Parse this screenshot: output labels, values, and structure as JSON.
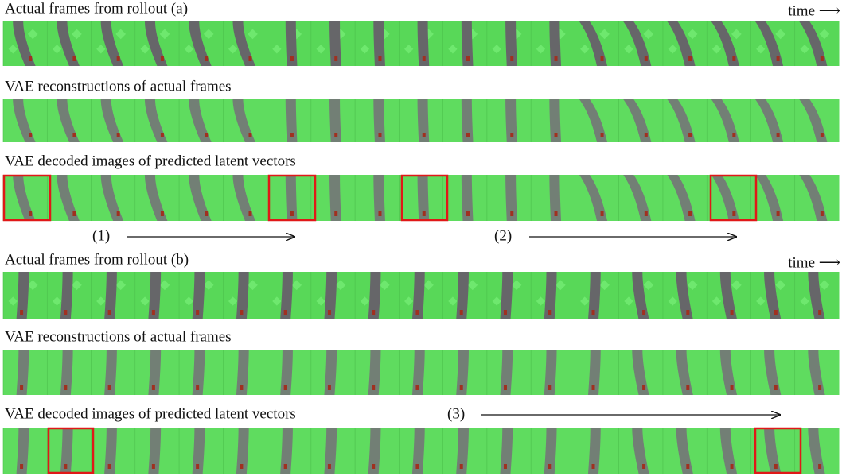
{
  "sections": [
    {
      "label": "Actual frames from rollout (a)",
      "time": "time ⟶"
    },
    {
      "label": "VAE reconstructions of actual frames"
    },
    {
      "label": "VAE decoded images of predicted latent vectors"
    },
    {
      "label": "Actual frames from rollout (b)",
      "time": "time ⟶"
    },
    {
      "label": "VAE reconstructions of actual frames"
    },
    {
      "label": "VAE decoded images of predicted latent vectors"
    }
  ],
  "annotations": [
    "(1)",
    "(2)",
    "(3)"
  ]
}
